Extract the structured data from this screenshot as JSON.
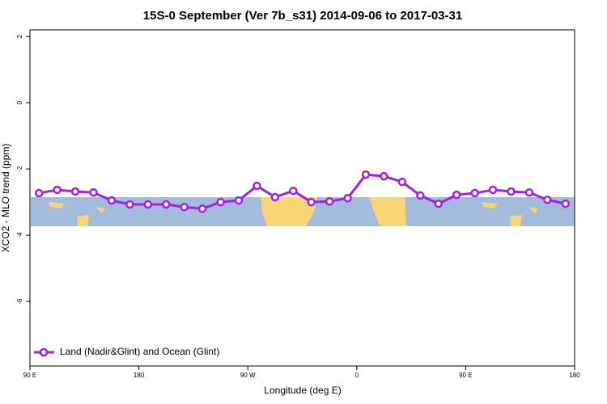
{
  "chart_data": {
    "type": "line",
    "title": "15S-0 September (Ver 7b_s31)   2014-09-06 to 2017-03-31",
    "x_label": "Longitude (deg E)",
    "y_label": "XCO2 - MLO trend (ppm)",
    "x": [
      97.5,
      112.5,
      127.5,
      142.5,
      157.5,
      172.5,
      187.5,
      202.5,
      217.5,
      232.5,
      247.5,
      262.5,
      277.5,
      292.5,
      307.5,
      322.5,
      337.5,
      352.5,
      367.5,
      382.5,
      397.5,
      412.5,
      427.5,
      442.5,
      457.5,
      472.5,
      487.5,
      502.5,
      517.5,
      532.5
    ],
    "series": [
      {
        "name": "Land (Nadir&Glint) and Ocean (Glint)",
        "color": "#a020f0",
        "values": [
          -2.73,
          -2.63,
          -2.68,
          -2.71,
          -2.95,
          -3.07,
          -3.07,
          -3.07,
          -3.15,
          -3.2,
          -3.0,
          -2.95,
          -2.51,
          -2.85,
          -2.66,
          -3.0,
          -2.98,
          -2.88,
          -2.17,
          -2.22,
          -2.39,
          -2.8,
          -3.05,
          -2.78,
          -2.73,
          -2.63,
          -2.68,
          -2.71,
          -2.93,
          -3.05
        ]
      }
    ],
    "xlim": [
      90,
      540
    ],
    "xticks": [
      {
        "value": 90,
        "label": "90 E"
      },
      {
        "value": 180,
        "label": "180"
      },
      {
        "value": 270,
        "label": "90 W"
      },
      {
        "value": 360,
        "label": "0"
      },
      {
        "value": 450,
        "label": "90 E"
      },
      {
        "value": 540,
        "label": "180"
      }
    ],
    "ylim": [
      -7.95,
      2.2
    ],
    "yticks": [
      2,
      0,
      -2,
      -4,
      -6
    ],
    "legend": "bottom-left"
  }
}
